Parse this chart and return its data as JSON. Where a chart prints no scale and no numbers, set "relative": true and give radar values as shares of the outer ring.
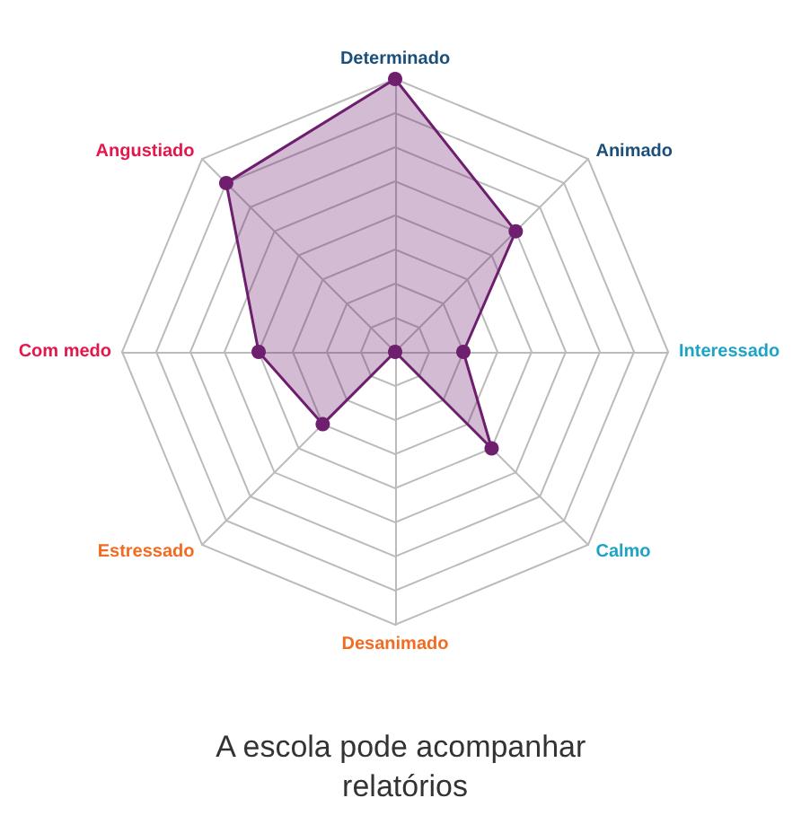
{
  "chart_data": {
    "type": "radar",
    "relative": true,
    "title": "A escola pode acompanhar relatórios",
    "categories": [
      "Determinado",
      "Animado",
      "Interessado",
      "Calmo",
      "Desanimado",
      "Estressado",
      "Com medo",
      "Angustiado"
    ],
    "series": [
      {
        "color": "#6e1f6e",
        "values": [
          1,
          0.625,
          0.25,
          0.5,
          0,
          0.375,
          0.5,
          0.875
        ]
      }
    ],
    "marker": "circle",
    "grid": true
  }
}
